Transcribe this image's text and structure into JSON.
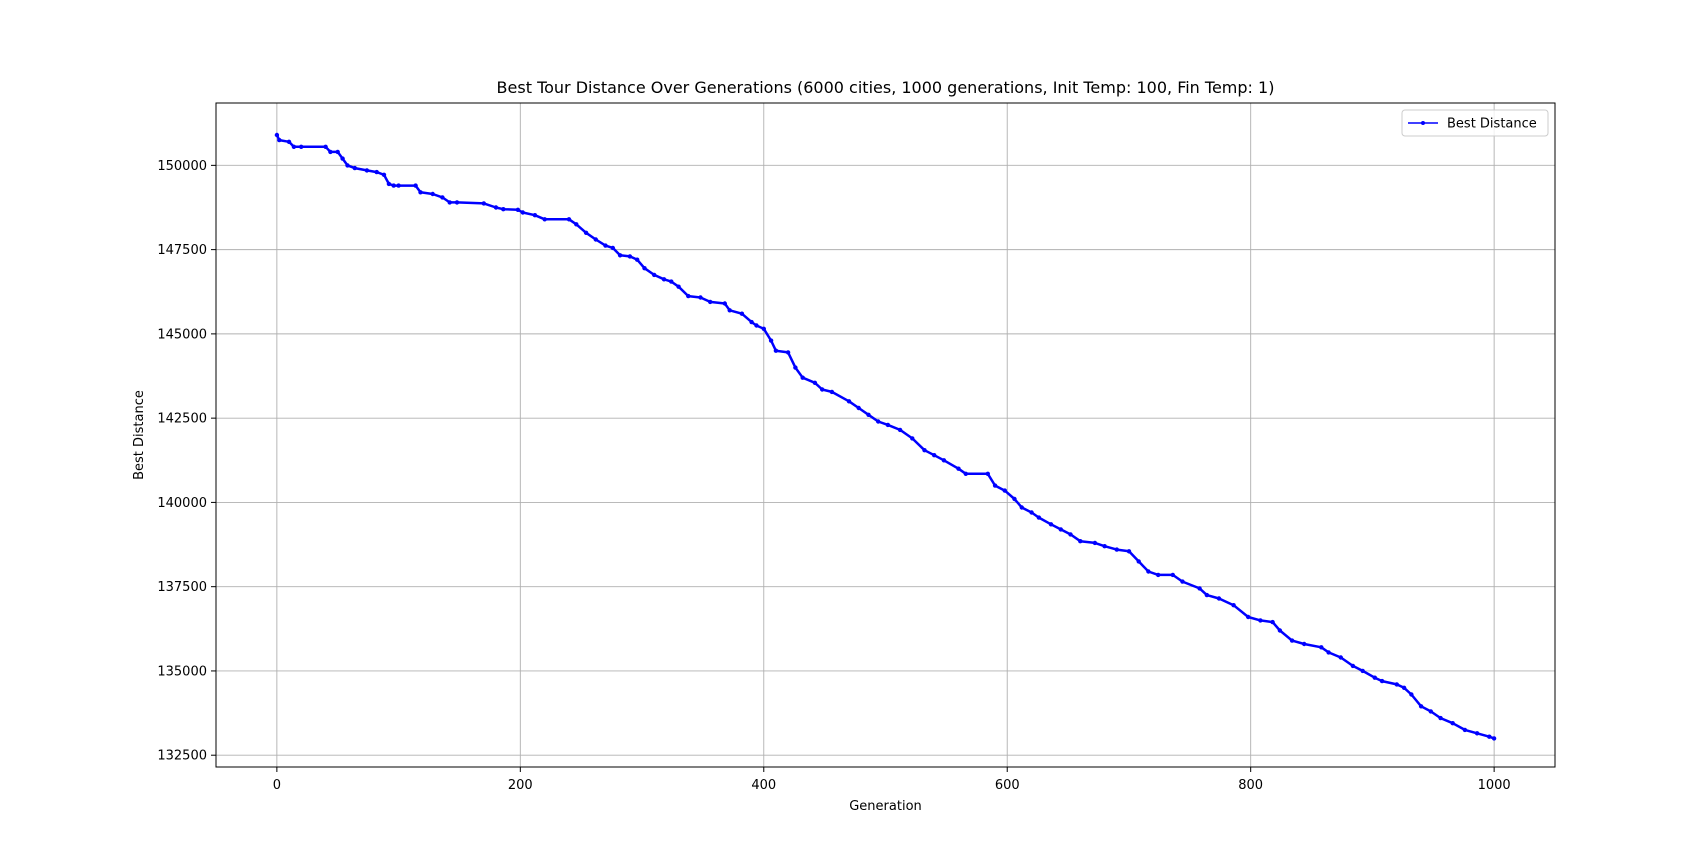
{
  "chart_data": {
    "type": "line",
    "title": "Best Tour Distance Over Generations (6000 cities, 1000 generations, Init Temp: 100, Fin Temp: 1)",
    "xlabel": "Generation",
    "ylabel": "Best Distance",
    "xlim": [
      -50,
      1050
    ],
    "ylim": [
      132150,
      151850
    ],
    "x_ticks": [
      0,
      200,
      400,
      600,
      800,
      1000
    ],
    "y_ticks": [
      132500,
      135000,
      137500,
      140000,
      142500,
      145000,
      147500,
      150000
    ],
    "grid": true,
    "legend_position": "upper right",
    "series": [
      {
        "name": "Best Distance",
        "color": "#0000ff",
        "marker": "point",
        "x": [
          0,
          2,
          10,
          14,
          20,
          40,
          44,
          50,
          54,
          58,
          64,
          74,
          82,
          88,
          92,
          96,
          100,
          114,
          118,
          128,
          136,
          142,
          148,
          170,
          180,
          186,
          198,
          202,
          212,
          220,
          240,
          246,
          254,
          262,
          270,
          276,
          282,
          290,
          296,
          302,
          310,
          318,
          324,
          330,
          338,
          348,
          356,
          368,
          372,
          382,
          390,
          394,
          400,
          406,
          410,
          420,
          426,
          432,
          442,
          448,
          456,
          470,
          478,
          486,
          494,
          502,
          512,
          522,
          532,
          540,
          548,
          560,
          566,
          584,
          590,
          598,
          606,
          612,
          620,
          626,
          636,
          644,
          652,
          660,
          672,
          680,
          690,
          700,
          708,
          716,
          724,
          736,
          744,
          758,
          764,
          774,
          786,
          798,
          808,
          818,
          824,
          834,
          844,
          858,
          864,
          874,
          884,
          892,
          902,
          908,
          920,
          926,
          932,
          940,
          948,
          956,
          966,
          976,
          986,
          996,
          1000
        ],
        "y": [
          150900,
          150750,
          150700,
          150550,
          150550,
          150550,
          150400,
          150400,
          150200,
          150000,
          149920,
          149850,
          149800,
          149720,
          149450,
          149400,
          149400,
          149400,
          149200,
          149150,
          149050,
          148900,
          148900,
          148870,
          148750,
          148700,
          148680,
          148600,
          148520,
          148400,
          148400,
          148250,
          148000,
          147800,
          147620,
          147550,
          147330,
          147300,
          147200,
          146950,
          146750,
          146620,
          146550,
          146400,
          146120,
          146080,
          145950,
          145900,
          145700,
          145600,
          145350,
          145250,
          145150,
          144800,
          144500,
          144450,
          144000,
          143700,
          143550,
          143350,
          143280,
          143000,
          142800,
          142600,
          142400,
          142300,
          142150,
          141900,
          141550,
          141400,
          141250,
          141000,
          140850,
          140850,
          140500,
          140350,
          140100,
          139850,
          139700,
          139550,
          139350,
          139200,
          139050,
          138850,
          138800,
          138700,
          138600,
          138550,
          138250,
          137950,
          137850,
          137850,
          137650,
          137450,
          137250,
          137150,
          136950,
          136600,
          136500,
          136450,
          136200,
          135900,
          135800,
          135700,
          135550,
          135400,
          135150,
          135000,
          134800,
          134700,
          134600,
          134500,
          134300,
          133950,
          133800,
          133600,
          133450,
          133250,
          133150,
          133050,
          133000
        ]
      }
    ]
  }
}
